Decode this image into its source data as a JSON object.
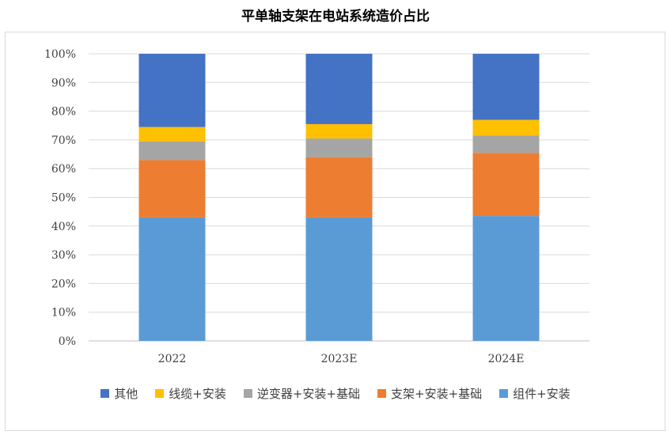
{
  "chart_data": {
    "type": "bar",
    "stacked": true,
    "title": "平单轴支架在电站系统造价占比",
    "categories": [
      "2022",
      "2023E",
      "2024E"
    ],
    "ylim": [
      0,
      100
    ],
    "yticks": [
      "0%",
      "10%",
      "20%",
      "30%",
      "40%",
      "50%",
      "60%",
      "70%",
      "80%",
      "90%",
      "100%"
    ],
    "grid": true,
    "legend_position": "bottom",
    "series": [
      {
        "name": "组件+安装",
        "color": "#5b9bd5",
        "values": [
          43,
          43,
          43.5
        ]
      },
      {
        "name": "支架+安装+基础",
        "color": "#ed7d31",
        "values": [
          20,
          21,
          22
        ]
      },
      {
        "name": "逆变器+安装+基础",
        "color": "#a5a5a5",
        "values": [
          6.5,
          6.5,
          6
        ]
      },
      {
        "name": "线缆+安装",
        "color": "#ffc000",
        "values": [
          5,
          5,
          5.5
        ]
      },
      {
        "name": "其他",
        "color": "#4472c4",
        "values": [
          25.5,
          24.5,
          23
        ]
      }
    ],
    "legend_order": [
      "其他",
      "线缆+安装",
      "逆变器+安装+基础",
      "支架+安装+基础",
      "组件+安装"
    ]
  }
}
